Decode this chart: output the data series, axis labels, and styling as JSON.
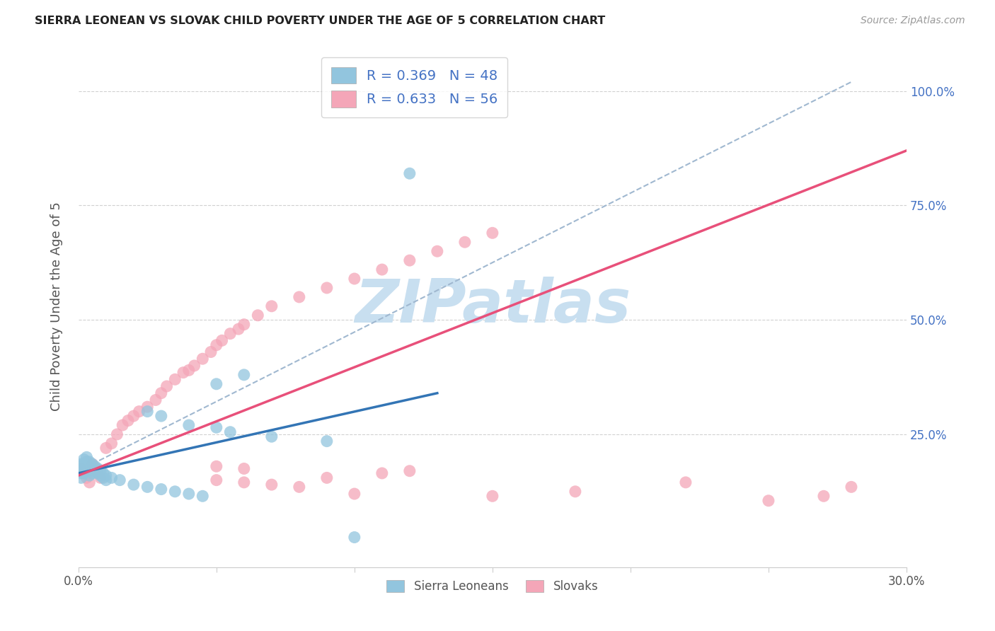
{
  "title": "SIERRA LEONEAN VS SLOVAK CHILD POVERTY UNDER THE AGE OF 5 CORRELATION CHART",
  "source": "Source: ZipAtlas.com",
  "ylabel": "Child Poverty Under the Age of 5",
  "xlim": [
    0.0,
    0.3
  ],
  "ylim": [
    -0.04,
    1.1
  ],
  "right_yticks": [
    0.25,
    0.5,
    0.75,
    1.0
  ],
  "right_yticklabels": [
    "25.0%",
    "50.0%",
    "75.0%",
    "100.0%"
  ],
  "xticks": [
    0.0,
    0.05,
    0.1,
    0.15,
    0.2,
    0.25,
    0.3
  ],
  "xticklabels": [
    "0.0%",
    "",
    "",
    "",
    "",
    "",
    "30.0%"
  ],
  "legend_r": [
    "R = 0.369",
    "R = 0.633"
  ],
  "legend_n": [
    "N = 48",
    "N = 56"
  ],
  "blue_color": "#92c5de",
  "pink_color": "#f4a6b8",
  "blue_line_color": "#3375b5",
  "pink_line_color": "#e8507a",
  "ref_line_color": "#a0b8d0",
  "watermark": "ZIPatlas",
  "watermark_color": "#c8dff0",
  "grid_color": "#cccccc",
  "blue_dots": [
    [
      0.001,
      0.185
    ],
    [
      0.001,
      0.175
    ],
    [
      0.001,
      0.165
    ],
    [
      0.001,
      0.155
    ],
    [
      0.002,
      0.195
    ],
    [
      0.002,
      0.185
    ],
    [
      0.002,
      0.175
    ],
    [
      0.002,
      0.165
    ],
    [
      0.003,
      0.2
    ],
    [
      0.003,
      0.19
    ],
    [
      0.003,
      0.18
    ],
    [
      0.003,
      0.17
    ],
    [
      0.004,
      0.19
    ],
    [
      0.004,
      0.18
    ],
    [
      0.004,
      0.17
    ],
    [
      0.004,
      0.16
    ],
    [
      0.005,
      0.185
    ],
    [
      0.005,
      0.175
    ],
    [
      0.005,
      0.165
    ],
    [
      0.006,
      0.18
    ],
    [
      0.006,
      0.17
    ],
    [
      0.007,
      0.175
    ],
    [
      0.007,
      0.165
    ],
    [
      0.008,
      0.17
    ],
    [
      0.008,
      0.16
    ],
    [
      0.009,
      0.165
    ],
    [
      0.009,
      0.155
    ],
    [
      0.01,
      0.16
    ],
    [
      0.01,
      0.15
    ],
    [
      0.012,
      0.155
    ],
    [
      0.015,
      0.15
    ],
    [
      0.02,
      0.14
    ],
    [
      0.025,
      0.135
    ],
    [
      0.03,
      0.13
    ],
    [
      0.035,
      0.125
    ],
    [
      0.04,
      0.12
    ],
    [
      0.045,
      0.115
    ],
    [
      0.05,
      0.36
    ],
    [
      0.06,
      0.38
    ],
    [
      0.025,
      0.3
    ],
    [
      0.03,
      0.29
    ],
    [
      0.04,
      0.27
    ],
    [
      0.05,
      0.265
    ],
    [
      0.055,
      0.255
    ],
    [
      0.07,
      0.245
    ],
    [
      0.09,
      0.235
    ],
    [
      0.12,
      0.82
    ],
    [
      0.1,
      0.025
    ]
  ],
  "pink_dots": [
    [
      0.001,
      0.175
    ],
    [
      0.002,
      0.165
    ],
    [
      0.003,
      0.155
    ],
    [
      0.004,
      0.145
    ],
    [
      0.005,
      0.185
    ],
    [
      0.006,
      0.175
    ],
    [
      0.007,
      0.165
    ],
    [
      0.008,
      0.155
    ],
    [
      0.01,
      0.22
    ],
    [
      0.012,
      0.23
    ],
    [
      0.014,
      0.25
    ],
    [
      0.016,
      0.27
    ],
    [
      0.018,
      0.28
    ],
    [
      0.02,
      0.29
    ],
    [
      0.022,
      0.3
    ],
    [
      0.025,
      0.31
    ],
    [
      0.028,
      0.325
    ],
    [
      0.03,
      0.34
    ],
    [
      0.032,
      0.355
    ],
    [
      0.035,
      0.37
    ],
    [
      0.038,
      0.385
    ],
    [
      0.04,
      0.39
    ],
    [
      0.042,
      0.4
    ],
    [
      0.045,
      0.415
    ],
    [
      0.048,
      0.43
    ],
    [
      0.05,
      0.445
    ],
    [
      0.052,
      0.455
    ],
    [
      0.055,
      0.47
    ],
    [
      0.058,
      0.48
    ],
    [
      0.06,
      0.49
    ],
    [
      0.065,
      0.51
    ],
    [
      0.07,
      0.53
    ],
    [
      0.08,
      0.55
    ],
    [
      0.09,
      0.57
    ],
    [
      0.1,
      0.59
    ],
    [
      0.11,
      0.61
    ],
    [
      0.12,
      0.63
    ],
    [
      0.13,
      0.65
    ],
    [
      0.14,
      0.67
    ],
    [
      0.15,
      0.69
    ],
    [
      0.05,
      0.15
    ],
    [
      0.06,
      0.145
    ],
    [
      0.07,
      0.14
    ],
    [
      0.05,
      0.18
    ],
    [
      0.06,
      0.175
    ],
    [
      0.09,
      0.155
    ],
    [
      0.11,
      0.165
    ],
    [
      0.12,
      0.17
    ],
    [
      0.08,
      0.135
    ],
    [
      0.1,
      0.12
    ],
    [
      0.15,
      0.115
    ],
    [
      0.18,
      0.125
    ],
    [
      0.22,
      0.145
    ],
    [
      0.25,
      0.105
    ],
    [
      0.27,
      0.115
    ],
    [
      0.28,
      0.135
    ]
  ],
  "blue_line": {
    "x0": 0.0,
    "x1": 0.13,
    "y0": 0.165,
    "y1": 0.34
  },
  "pink_line": {
    "x0": 0.0,
    "x1": 0.3,
    "y0": 0.16,
    "y1": 0.87
  },
  "ref_line": {
    "x0": 0.005,
    "x1": 0.28,
    "y0": 0.185,
    "y1": 1.02
  }
}
